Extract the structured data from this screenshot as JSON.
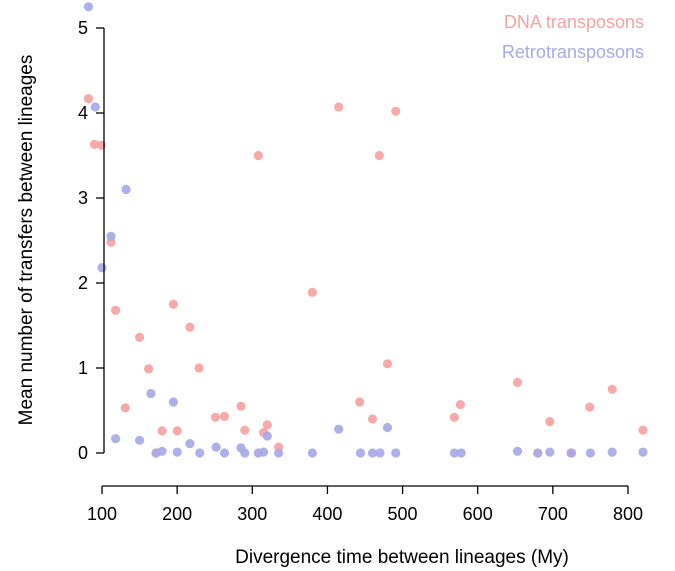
{
  "chart_data": {
    "type": "scatter",
    "xlabel": "Divergence time between lineages (My)",
    "ylabel": "Mean number of transfers between lineages",
    "xlim": [
      80,
      820
    ],
    "ylim": [
      0,
      5
    ],
    "x_ticks": [
      100,
      200,
      300,
      400,
      500,
      600,
      700,
      800
    ],
    "y_ticks": [
      0,
      1,
      2,
      3,
      4,
      5
    ],
    "grid": false,
    "legend_position": "top-right",
    "series": [
      {
        "name": "DNA transposons",
        "color": "#f7a3a3",
        "points": [
          [
            82,
            4.17
          ],
          [
            90,
            3.63
          ],
          [
            99,
            3.62
          ],
          [
            112,
            2.48
          ],
          [
            118,
            1.68
          ],
          [
            131,
            0.53
          ],
          [
            150,
            1.36
          ],
          [
            162,
            0.99
          ],
          [
            172,
            0.0
          ],
          [
            180,
            0.26
          ],
          [
            195,
            1.75
          ],
          [
            200,
            0.26
          ],
          [
            217,
            1.48
          ],
          [
            229,
            1.0
          ],
          [
            251,
            0.42
          ],
          [
            263,
            0.43
          ],
          [
            285,
            0.55
          ],
          [
            290,
            0.27
          ],
          [
            308,
            3.5
          ],
          [
            315,
            0.24
          ],
          [
            320,
            0.33
          ],
          [
            335,
            0.07
          ],
          [
            380,
            1.89
          ],
          [
            415,
            4.07
          ],
          [
            443,
            0.6
          ],
          [
            460,
            0.4
          ],
          [
            469,
            3.5
          ],
          [
            480,
            1.05
          ],
          [
            491,
            4.02
          ],
          [
            569,
            0.42
          ],
          [
            577,
            0.57
          ],
          [
            653,
            0.83
          ],
          [
            680,
            0.0
          ],
          [
            696,
            0.37
          ],
          [
            724,
            0.0
          ],
          [
            749,
            0.54
          ],
          [
            779,
            0.75
          ],
          [
            820,
            0.27
          ]
        ]
      },
      {
        "name": "Retrotransposons",
        "color": "#a9a9e6",
        "points": [
          [
            82,
            5.25
          ],
          [
            91,
            4.07
          ],
          [
            100,
            2.18
          ],
          [
            112,
            2.55
          ],
          [
            118,
            0.17
          ],
          [
            132,
            3.1
          ],
          [
            150,
            0.15
          ],
          [
            165,
            0.7
          ],
          [
            172,
            0.0
          ],
          [
            180,
            0.02
          ],
          [
            195,
            0.6
          ],
          [
            200,
            0.01
          ],
          [
            217,
            0.11
          ],
          [
            230,
            0.0
          ],
          [
            252,
            0.07
          ],
          [
            263,
            0.0
          ],
          [
            285,
            0.06
          ],
          [
            290,
            0.0
          ],
          [
            308,
            0.0
          ],
          [
            315,
            0.01
          ],
          [
            320,
            0.2
          ],
          [
            335,
            0.0
          ],
          [
            380,
            0.0
          ],
          [
            415,
            0.28
          ],
          [
            444,
            0.0
          ],
          [
            460,
            0.0
          ],
          [
            470,
            0.0
          ],
          [
            480,
            0.3
          ],
          [
            491,
            0.0
          ],
          [
            569,
            0.0
          ],
          [
            578,
            0.0
          ],
          [
            653,
            0.02
          ],
          [
            680,
            0.0
          ],
          [
            696,
            0.01
          ],
          [
            725,
            0.0
          ],
          [
            750,
            0.0
          ],
          [
            779,
            0.01
          ],
          [
            820,
            0.01
          ]
        ]
      }
    ]
  }
}
